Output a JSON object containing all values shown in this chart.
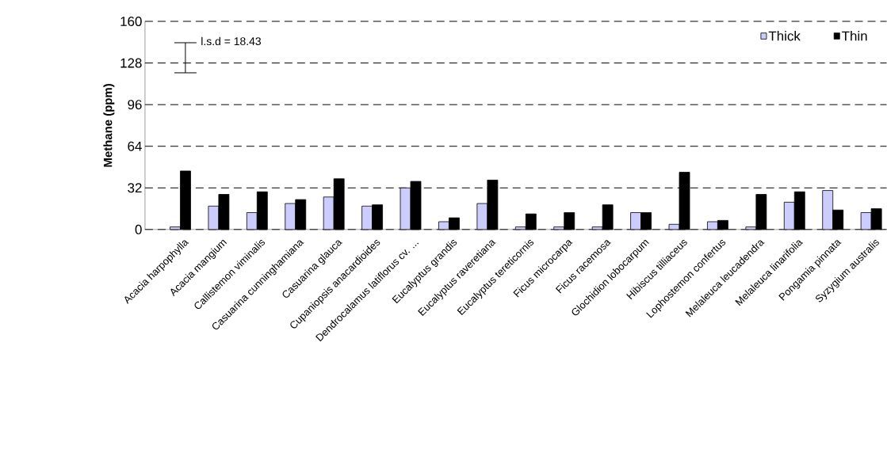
{
  "chart_data": {
    "type": "bar",
    "ylabel": "Methane (ppm)",
    "categories": [
      "Acacia harpophylla",
      "Acacia mangium",
      "Callistemon viminalis",
      "Casuarina cunninghamiana",
      "Casuarina glauca",
      "Cupaniopsis anacardioides",
      "Dendrocalamus latiflorus cv. ...",
      "Eucalyptus grandis",
      "Eucalyptus raveretiana",
      "Eucalyptus tereticornis",
      "Ficus microcarpa",
      "Ficus racemosa",
      "Glochidion lobocarpum",
      "Hibiscus tilliaceus",
      "Lophostemon confertus",
      "Melaleuca leucadendra",
      "Melaleuca linarifolia",
      "Pongamia pinnata",
      "Syzygium australis"
    ],
    "series": [
      {
        "name": "Thick",
        "color": "#ccccff",
        "values": [
          2,
          18,
          13,
          20,
          25,
          18,
          32,
          6,
          20,
          2,
          2,
          2,
          13,
          4,
          6,
          2,
          21,
          30,
          13
        ]
      },
      {
        "name": "Thin",
        "color": "#000000",
        "values": [
          45,
          27,
          29,
          23,
          39,
          19,
          37,
          9,
          38,
          12,
          13,
          19,
          13,
          44,
          7,
          27,
          29,
          15,
          16
        ]
      }
    ],
    "ylim": [
      0,
      160
    ],
    "yticks": [
      0,
      32,
      64,
      96,
      128,
      160
    ],
    "grid": "y",
    "legend": "top right",
    "annotations": [
      "l.s.d = 18.43"
    ]
  }
}
